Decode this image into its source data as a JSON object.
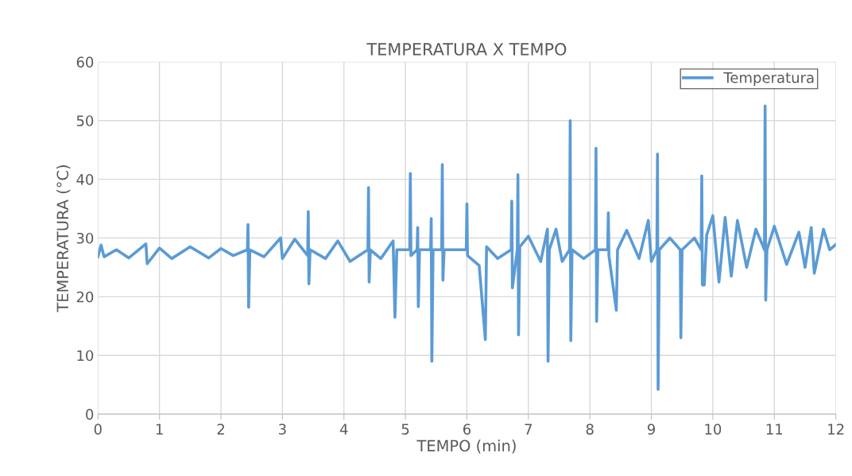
{
  "chart_data": {
    "type": "line",
    "title": "TEMPERATURA X TEMPO",
    "xlabel": "TEMPO (min)",
    "ylabel": "TEMPERATURA (°C)",
    "xlim": [
      0,
      12
    ],
    "xticks": [
      0,
      1,
      2,
      3,
      4,
      5,
      6,
      7,
      8,
      9,
      10,
      11,
      12
    ],
    "ylim": [
      0,
      60
    ],
    "yticks": [
      0,
      10,
      20,
      30,
      40,
      50,
      60
    ],
    "grid": true,
    "legend": "top right",
    "marker": "none",
    "line_style": "solid",
    "series": [
      {
        "name": "Temperatura",
        "color": "#5b9bd5",
        "x": [
          0,
          0.05,
          0.1,
          0.3,
          0.5,
          0.78,
          0.8,
          1.0,
          1.2,
          1.5,
          1.8,
          2.0,
          2.2,
          2.43,
          2.44,
          2.45,
          2.47,
          2.7,
          2.97,
          3.0,
          3.2,
          3.41,
          3.42,
          3.43,
          3.45,
          3.7,
          3.9,
          4.1,
          4.39,
          4.4,
          4.41,
          4.43,
          4.6,
          4.8,
          4.83,
          4.86,
          5.07,
          5.08,
          5.09,
          5.19,
          5.2,
          5.21,
          5.23,
          5.41,
          5.42,
          5.43,
          5.45,
          5.59,
          5.6,
          5.61,
          5.63,
          5.99,
          6.0,
          6.01,
          6.2,
          6.3,
          6.32,
          6.5,
          6.72,
          6.73,
          6.74,
          6.82,
          6.83,
          6.84,
          6.86,
          7.0,
          7.2,
          7.31,
          7.32,
          7.34,
          7.45,
          7.55,
          7.67,
          7.68,
          7.69,
          7.71,
          7.9,
          8.09,
          8.1,
          8.11,
          8.13,
          8.29,
          8.3,
          8.31,
          8.43,
          8.45,
          8.6,
          8.8,
          8.95,
          9.0,
          9.09,
          9.1,
          9.11,
          9.13,
          9.3,
          9.47,
          9.48,
          9.5,
          9.7,
          9.81,
          9.82,
          9.83,
          9.86,
          9.9,
          10.0,
          10.1,
          10.2,
          10.3,
          10.4,
          10.55,
          10.7,
          10.84,
          10.85,
          10.86,
          10.88,
          11.0,
          11.2,
          11.4,
          11.5,
          11.6,
          11.65,
          11.8,
          11.9,
          12.0
        ],
        "values": [
          26.8,
          28.8,
          26.8,
          28,
          26.6,
          29,
          25.6,
          28.3,
          26.5,
          28.5,
          26.6,
          28.2,
          27,
          28,
          32.3,
          18.2,
          28,
          26.8,
          30,
          26.5,
          29.8,
          27,
          34.5,
          22.2,
          28,
          26.5,
          29.5,
          26,
          28,
          38.6,
          22.5,
          28,
          26.5,
          29.5,
          16.5,
          28,
          28,
          41,
          27,
          28,
          31.8,
          18.3,
          28,
          28,
          33.3,
          9,
          28,
          28,
          42.5,
          22.8,
          28,
          28,
          35.8,
          27,
          25.3,
          12.7,
          28.5,
          26.5,
          28,
          36.3,
          21.5,
          28,
          40.8,
          13.5,
          28.5,
          30.3,
          26,
          31.5,
          9,
          28,
          31.5,
          26,
          28,
          50,
          12.5,
          28,
          26.5,
          28,
          45.3,
          15.8,
          28,
          28,
          34.3,
          27,
          17.7,
          28,
          31.3,
          26.5,
          33,
          26,
          28,
          44.3,
          4.2,
          28,
          30,
          28,
          13,
          28,
          30,
          28,
          40.6,
          22,
          22,
          30.5,
          33.8,
          22.5,
          33.5,
          23.5,
          33,
          25,
          31.5,
          28,
          52.5,
          19.4,
          28,
          32,
          25.5,
          31,
          25,
          31.8,
          24,
          31.5,
          28,
          28.9
        ]
      }
    ]
  }
}
